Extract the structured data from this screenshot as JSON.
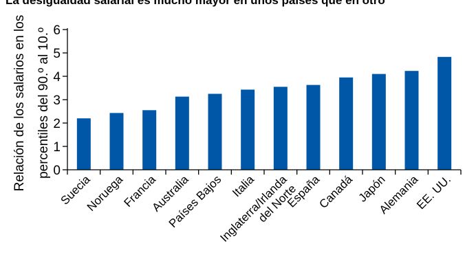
{
  "chart_data": {
    "type": "bar",
    "title": "La desigualdad salarial es mucho mayor en unos países que en otro",
    "ylabel": [
      "Relación de los salarios en los",
      "percentiles del 90.º al 10.º"
    ],
    "xlabel": "",
    "ylim": [
      0,
      6
    ],
    "yticks": [
      "0",
      "1",
      "2",
      "3",
      "4",
      "5",
      "6"
    ],
    "grid": false,
    "legend": "none",
    "bar_color": "#0057A8",
    "categories": [
      [
        "Suecia"
      ],
      [
        "Noruega"
      ],
      [
        "Francia"
      ],
      [
        "Australia"
      ],
      [
        "Países Bajos"
      ],
      [
        "Italia"
      ],
      [
        "Inglaterra/Irlanda",
        "del Norte"
      ],
      [
        "España"
      ],
      [
        "Canadá"
      ],
      [
        "Japón"
      ],
      [
        "Alemania"
      ],
      [
        "EE. UU."
      ]
    ],
    "values": [
      2.2,
      2.43,
      2.55,
      3.13,
      3.25,
      3.43,
      3.55,
      3.63,
      3.95,
      4.1,
      4.23,
      4.83
    ]
  }
}
